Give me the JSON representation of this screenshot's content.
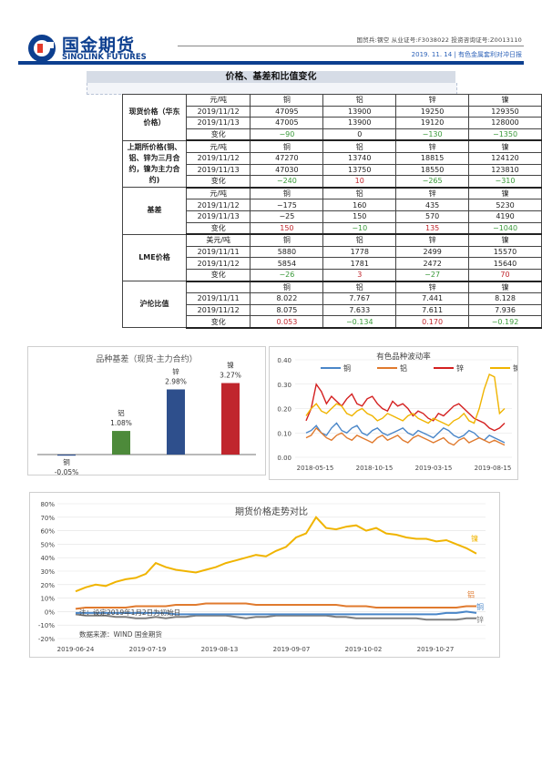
{
  "header": {
    "logo_cn": "国金期货",
    "logo_en": "SINOLINK FUTURES",
    "top_text": "国贸兵:钢空  从业证号:F3038022  投资咨询证号:Z0013110",
    "date_text": "2019. 11. 14  |  有色金属套利对冲日报"
  },
  "section": {
    "title": "价格、基差和比值变化"
  },
  "table": [
    {
      "group": "现货价格（华东价格）",
      "rows": [
        [
          "元/吨",
          "铜",
          "铝",
          "锌",
          "镍"
        ],
        [
          "2019/11/12",
          "47095",
          "13900",
          "19250",
          "129350"
        ],
        [
          "2019/11/13",
          "47005",
          "13900",
          "19120",
          "128000"
        ],
        [
          "变化",
          "−90",
          "0",
          "−130",
          "−1350"
        ]
      ]
    },
    {
      "group": "上期所价格(铜、铝、锌为三月合约，镍为主力合约)",
      "rows": [
        [
          "元/吨",
          "铜",
          "铝",
          "锌",
          "镍"
        ],
        [
          "2019/11/12",
          "47270",
          "13740",
          "18815",
          "124120"
        ],
        [
          "2019/11/13",
          "47030",
          "13750",
          "18550",
          "123810"
        ],
        [
          "变化",
          "−240",
          "10",
          "−265",
          "−310"
        ]
      ]
    },
    {
      "group": "基差",
      "rows": [
        [
          "元/吨",
          "铜",
          "铝",
          "锌",
          "镍"
        ],
        [
          "2019/11/12",
          "−175",
          "160",
          "435",
          "5230"
        ],
        [
          "2019/11/13",
          "−25",
          "150",
          "570",
          "4190"
        ],
        [
          "变化",
          "150",
          "−10",
          "135",
          "−1040"
        ]
      ]
    },
    {
      "group": "LME价格",
      "rows": [
        [
          "美元/吨",
          "铜",
          "铝",
          "锌",
          "镍"
        ],
        [
          "2019/11/11",
          "5880",
          "1778",
          "2499",
          "15570"
        ],
        [
          "2019/11/12",
          "5854",
          "1781",
          "2472",
          "15640"
        ],
        [
          "变化",
          "−26",
          "3",
          "−27",
          "70"
        ]
      ]
    },
    {
      "group": "沪伦比值",
      "rows": [
        [
          "",
          "铜",
          "铝",
          "锌",
          "镍"
        ],
        [
          "2019/11/11",
          "8.022",
          "7.767",
          "7.441",
          "8.128"
        ],
        [
          "2019/11/12",
          "8.075",
          "7.633",
          "7.611",
          "7.936"
        ],
        [
          "变化",
          "0.053",
          "−0.134",
          "0.170",
          "−0.192"
        ]
      ]
    }
  ],
  "change_colors": [
    [
      "green",
      "black",
      "green",
      "green"
    ],
    [
      "green",
      "red",
      "green",
      "green"
    ],
    [
      "red",
      "green",
      "red",
      "green"
    ],
    [
      "green",
      "red",
      "green",
      "red"
    ],
    [
      "red",
      "green",
      "red",
      "green"
    ]
  ],
  "chart_data": [
    {
      "type": "bar",
      "title": "品种基差（现货-主力合约）",
      "categories": [
        "铜",
        "铝",
        "锌",
        "镍"
      ],
      "values": [
        -0.05,
        1.08,
        2.98,
        3.27
      ],
      "labels": [
        "-0.05%",
        "1.08%",
        "2.98%",
        "3.27%"
      ],
      "colors": [
        "#2e4f8c",
        "#4d8a3a",
        "#2e4f8c",
        "#c0262d"
      ]
    },
    {
      "type": "line",
      "title": "有色品种波动率",
      "xticks": [
        "2018-05-15",
        "2018-10-15",
        "2019-03-15",
        "2019-08-15"
      ],
      "yticks": [
        "0.00",
        "0.10",
        "0.20",
        "0.30",
        "0.40"
      ],
      "ylim": [
        0,
        0.4
      ],
      "series": [
        {
          "name": "铜",
          "color": "#4a86c8",
          "values": [
            0.1,
            0.11,
            0.13,
            0.1,
            0.09,
            0.12,
            0.14,
            0.11,
            0.1,
            0.12,
            0.13,
            0.1,
            0.09,
            0.11,
            0.12,
            0.1,
            0.09,
            0.1,
            0.11,
            0.12,
            0.1,
            0.09,
            0.11,
            0.1,
            0.09,
            0.08,
            0.1,
            0.12,
            0.11,
            0.09,
            0.08,
            0.09,
            0.11,
            0.1,
            0.08,
            0.07,
            0.09,
            0.08,
            0.07,
            0.06
          ]
        },
        {
          "name": "铝",
          "color": "#e07a2e",
          "values": [
            0.08,
            0.09,
            0.12,
            0.1,
            0.08,
            0.07,
            0.09,
            0.1,
            0.08,
            0.07,
            0.09,
            0.08,
            0.07,
            0.06,
            0.08,
            0.09,
            0.07,
            0.08,
            0.09,
            0.07,
            0.06,
            0.08,
            0.09,
            0.08,
            0.07,
            0.06,
            0.07,
            0.08,
            0.06,
            0.05,
            0.07,
            0.08,
            0.06,
            0.07,
            0.08,
            0.07,
            0.06,
            0.07,
            0.06,
            0.05
          ]
        },
        {
          "name": "锌",
          "color": "#d42020",
          "values": [
            0.15,
            0.2,
            0.3,
            0.27,
            0.22,
            0.25,
            0.23,
            0.21,
            0.24,
            0.26,
            0.22,
            0.21,
            0.24,
            0.25,
            0.22,
            0.2,
            0.19,
            0.23,
            0.21,
            0.22,
            0.2,
            0.17,
            0.19,
            0.18,
            0.16,
            0.15,
            0.18,
            0.17,
            0.19,
            0.21,
            0.22,
            0.2,
            0.18,
            0.16,
            0.15,
            0.14,
            0.12,
            0.11,
            0.12,
            0.14
          ]
        },
        {
          "name": "镍",
          "color": "#f0b400",
          "values": [
            0.17,
            0.2,
            0.22,
            0.19,
            0.18,
            0.2,
            0.22,
            0.21,
            0.18,
            0.17,
            0.19,
            0.2,
            0.18,
            0.17,
            0.15,
            0.16,
            0.18,
            0.17,
            0.16,
            0.15,
            0.17,
            0.18,
            0.16,
            0.15,
            0.14,
            0.16,
            0.15,
            0.14,
            0.13,
            0.15,
            0.16,
            0.18,
            0.15,
            0.14,
            0.2,
            0.28,
            0.34,
            0.33,
            0.18,
            0.2
          ]
        }
      ]
    },
    {
      "type": "line",
      "title": "期货价格走势对比",
      "xticks": [
        "2019-06-24",
        "2019-07-19",
        "2019-08-13",
        "2019-09-07",
        "2019-10-02",
        "2019-10-27"
      ],
      "yticks": [
        "-20%",
        "-10%",
        "0%",
        "10%",
        "20%",
        "30%",
        "40%",
        "50%",
        "60%",
        "70%",
        "80%"
      ],
      "ylim": [
        -20,
        80
      ],
      "annotation": "注：设定2019年1月2日为初始日",
      "source": "数据来源：WIND 国金期货",
      "series": [
        {
          "name": "镍",
          "color": "#f0b400",
          "values": [
            15,
            18,
            20,
            19,
            22,
            24,
            25,
            28,
            36,
            33,
            31,
            30,
            29,
            31,
            33,
            36,
            38,
            40,
            42,
            41,
            45,
            48,
            55,
            58,
            70,
            62,
            61,
            63,
            64,
            60,
            62,
            58,
            57,
            55,
            54,
            54,
            52,
            53,
            50,
            47,
            43
          ]
        },
        {
          "name": "铝",
          "color": "#e07a2e",
          "values": [
            2,
            3,
            3,
            3,
            3,
            3,
            4,
            4,
            4,
            4,
            5,
            5,
            5,
            6,
            6,
            6,
            6,
            6,
            5,
            5,
            5,
            5,
            5,
            5,
            5,
            5,
            5,
            4,
            4,
            4,
            3,
            3,
            3,
            3,
            3,
            3,
            3,
            3,
            3,
            4,
            4
          ]
        },
        {
          "name": "锌",
          "color": "#7f7f7f",
          "values": [
            -2,
            -3,
            -3,
            -3,
            -4,
            -4,
            -5,
            -5,
            -4,
            -5,
            -4,
            -4,
            -3,
            -3,
            -3,
            -3,
            -4,
            -5,
            -4,
            -4,
            -3,
            -3,
            -3,
            -3,
            -3,
            -3,
            -4,
            -4,
            -5,
            -5,
            -5,
            -5,
            -5,
            -5,
            -5,
            -6,
            -6,
            -6,
            -6,
            -5,
            -5
          ]
        },
        {
          "name": "铜",
          "color": "#4a86c8",
          "values": [
            -1,
            -1,
            -1,
            -1,
            -1,
            -1,
            -1,
            -1,
            -1,
            -1,
            -2,
            -2,
            -2,
            -2,
            -2,
            -2,
            -2,
            -2,
            -2,
            -2,
            -2,
            -2,
            -2,
            -2,
            -2,
            -2,
            -2,
            -2,
            -2,
            -2,
            -2,
            -2,
            -2,
            -2,
            -2,
            -2,
            -2,
            -1,
            -1,
            0,
            -1
          ]
        }
      ]
    }
  ]
}
